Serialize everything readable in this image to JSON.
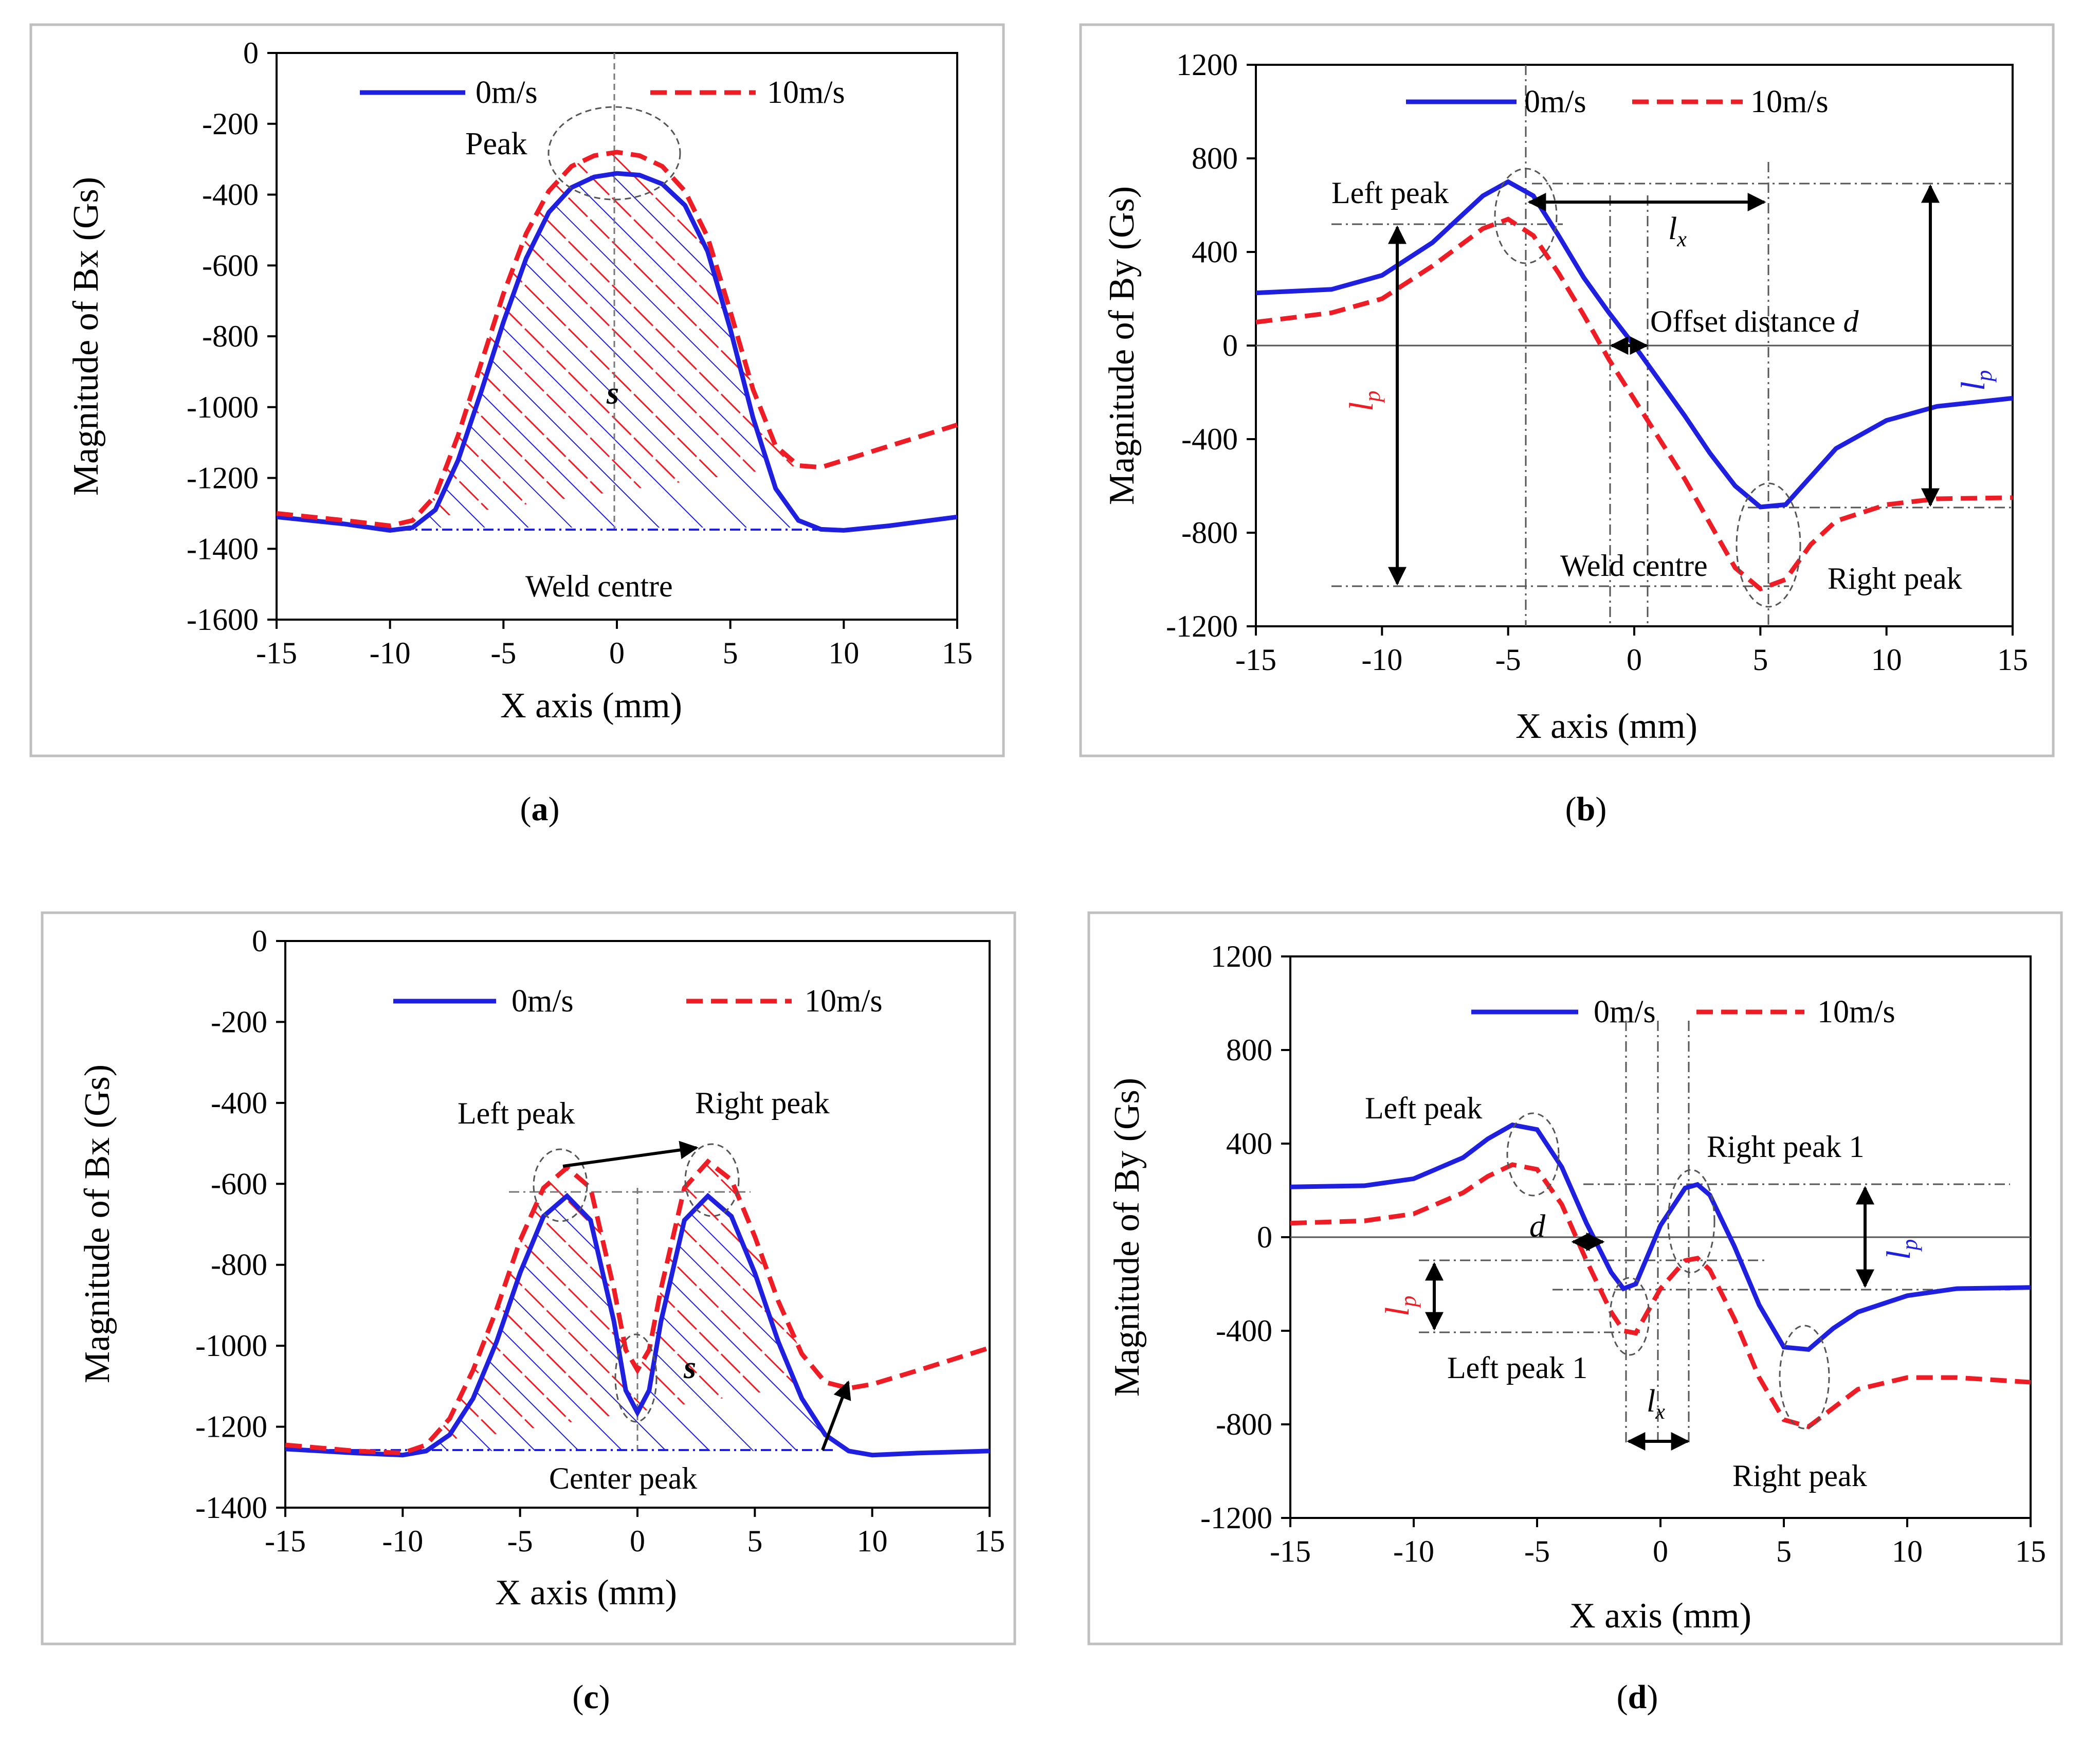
{
  "colors": {
    "series_0ms": "#1f1fe0",
    "series_10ms": "#ee1c24",
    "axis": "#000000",
    "grid_ref": "#555555",
    "panel_border": "#bfbfbf"
  },
  "chart_data": [
    {
      "id": "a",
      "type": "line",
      "panel_label": "a",
      "xlabel": "X axis (mm)",
      "ylabel": "Magnitude of Bx (Gs)",
      "xlim": [
        -15,
        15
      ],
      "ylim": [
        -1600,
        0
      ],
      "xticks": [
        -15,
        -10,
        -5,
        0,
        5,
        10,
        15
      ],
      "yticks": [
        0,
        -200,
        -400,
        -600,
        -800,
        -1000,
        -1200,
        -1400,
        -1600
      ],
      "legend": "top",
      "series": [
        {
          "name": "0m/s",
          "style": "solid",
          "x": [
            -15,
            -12,
            -10,
            -9,
            -8,
            -7,
            -6,
            -5,
            -4,
            -3,
            -2,
            -1,
            0,
            1,
            2,
            3,
            4,
            5,
            6,
            7,
            8,
            9,
            10,
            12,
            15
          ],
          "y": [
            -1310,
            -1330,
            -1348,
            -1340,
            -1290,
            -1150,
            -960,
            -760,
            -580,
            -450,
            -380,
            -350,
            -340,
            -345,
            -370,
            -430,
            -560,
            -780,
            -1030,
            -1230,
            -1320,
            -1345,
            -1348,
            -1335,
            -1310
          ]
        },
        {
          "name": "10m/s",
          "style": "dashed",
          "x": [
            -15,
            -12,
            -10,
            -9,
            -8,
            -7,
            -6,
            -5,
            -4,
            -3,
            -2,
            -1,
            0,
            1,
            2,
            3,
            4,
            5,
            6,
            7,
            8,
            9,
            10,
            12,
            15
          ],
          "y": [
            -1300,
            -1320,
            -1335,
            -1320,
            -1250,
            -1080,
            -880,
            -680,
            -510,
            -390,
            -320,
            -290,
            -280,
            -290,
            -320,
            -390,
            -520,
            -730,
            -950,
            -1110,
            -1165,
            -1170,
            -1150,
            -1110,
            -1050
          ]
        }
      ],
      "annotations": {
        "peak": "Peak",
        "area": "s",
        "weld": "Weld centre"
      }
    },
    {
      "id": "b",
      "type": "line",
      "panel_label": "b",
      "xlabel": "X axis (mm)",
      "ylabel": "Magnitude of By (Gs)",
      "xlim": [
        -15,
        15
      ],
      "ylim": [
        -1200,
        1200
      ],
      "xticks": [
        -15,
        -10,
        -5,
        0,
        5,
        10,
        15
      ],
      "yticks": [
        1200,
        800,
        400,
        0,
        -400,
        -800,
        -1200
      ],
      "legend": "top",
      "series": [
        {
          "name": "0m/s",
          "style": "solid",
          "x": [
            -15,
            -12,
            -10,
            -8,
            -7,
            -6,
            -5,
            -4,
            -3,
            -2,
            -1,
            0,
            1,
            2,
            3,
            4,
            5,
            6,
            7,
            8,
            10,
            12,
            15
          ],
          "y": [
            225,
            240,
            300,
            440,
            540,
            640,
            700,
            640,
            470,
            290,
            140,
            0,
            -150,
            -300,
            -460,
            -600,
            -690,
            -680,
            -560,
            -440,
            -320,
            -260,
            -225
          ]
        },
        {
          "name": "10m/s",
          "style": "dashed",
          "x": [
            -15,
            -12,
            -10,
            -8,
            -7,
            -6,
            -5,
            -4,
            -3,
            -2,
            -1,
            0,
            1,
            2,
            3,
            4,
            5,
            6,
            7,
            8,
            10,
            12,
            15
          ],
          "y": [
            100,
            140,
            200,
            340,
            420,
            500,
            540,
            470,
            310,
            130,
            -60,
            -230,
            -400,
            -570,
            -760,
            -950,
            -1040,
            -1000,
            -850,
            -750,
            -680,
            -655,
            -650
          ]
        }
      ],
      "annotations": {
        "left_peak": "Left peak",
        "right_peak": "Right peak",
        "lx": "l",
        "lx_sub": "x",
        "offset": "Offset distance ",
        "offset_var": "d",
        "weld": "Weld centre",
        "lp_red": "l",
        "lp_red_sub": "p",
        "lp_blue": "l",
        "lp_blue_sub": "p"
      }
    },
    {
      "id": "c",
      "type": "line",
      "panel_label": "c",
      "xlabel": "X axis (mm)",
      "ylabel": "Magnitude of Bx (Gs)",
      "xlim": [
        -15,
        15
      ],
      "ylim": [
        -1400,
        0
      ],
      "xticks": [
        -15,
        -10,
        -5,
        0,
        5,
        10,
        15
      ],
      "yticks": [
        0,
        -200,
        -400,
        -600,
        -800,
        -1000,
        -1200,
        -1400
      ],
      "legend": "top",
      "series": [
        {
          "name": "0m/s",
          "style": "solid",
          "x": [
            -15,
            -12,
            -10,
            -9,
            -8,
            -7,
            -6,
            -5,
            -4,
            -3,
            -2,
            -1,
            -0.5,
            0,
            0.5,
            1,
            2,
            3,
            4,
            5,
            6,
            7,
            8,
            9,
            10,
            12,
            15
          ],
          "y": [
            -1255,
            -1265,
            -1270,
            -1260,
            -1220,
            -1130,
            -990,
            -820,
            -680,
            -630,
            -690,
            -940,
            -1110,
            -1165,
            -1110,
            -940,
            -690,
            -630,
            -680,
            -820,
            -990,
            -1130,
            -1220,
            -1260,
            -1270,
            -1265,
            -1260
          ]
        },
        {
          "name": "10m/s",
          "style": "dashed",
          "x": [
            -15,
            -12,
            -10,
            -9,
            -8,
            -7,
            -6,
            -5,
            -4,
            -3,
            -2,
            -1,
            -0.5,
            0,
            0.5,
            1,
            2,
            3,
            4,
            5,
            6,
            7,
            8,
            9,
            10,
            12,
            15
          ],
          "y": [
            -1245,
            -1260,
            -1265,
            -1245,
            -1180,
            -1060,
            -910,
            -740,
            -610,
            -560,
            -610,
            -860,
            -1010,
            -1060,
            -1010,
            -860,
            -610,
            -545,
            -590,
            -730,
            -890,
            -1020,
            -1090,
            -1105,
            -1095,
            -1060,
            -1005
          ]
        }
      ],
      "annotations": {
        "left_peak": "Left peak",
        "right_peak": "Right peak",
        "center_peak": "Center peak",
        "area": "s"
      }
    },
    {
      "id": "d",
      "type": "line",
      "panel_label": "d",
      "xlabel": "X axis (mm)",
      "ylabel": "Magnitude of By (Gs)",
      "xlim": [
        -15,
        15
      ],
      "ylim": [
        -1200,
        1200
      ],
      "xticks": [
        -15,
        -10,
        -5,
        0,
        5,
        10,
        15
      ],
      "yticks": [
        1200,
        800,
        400,
        0,
        -400,
        -800,
        -1200
      ],
      "legend": "top",
      "series": [
        {
          "name": "0m/s",
          "style": "solid",
          "x": [
            -15,
            -12,
            -10,
            -8,
            -7,
            -6,
            -5,
            -4,
            -3,
            -2,
            -1.5,
            -1,
            0,
            1,
            1.5,
            2,
            3,
            4,
            5,
            6,
            7,
            8,
            10,
            12,
            15
          ],
          "y": [
            215,
            220,
            250,
            340,
            420,
            480,
            460,
            300,
            60,
            -150,
            -220,
            -200,
            50,
            210,
            225,
            180,
            -40,
            -290,
            -470,
            -480,
            -390,
            -320,
            -250,
            -220,
            -215
          ]
        },
        {
          "name": "10m/s",
          "style": "dashed",
          "x": [
            -15,
            -12,
            -10,
            -8,
            -7,
            -6,
            -5,
            -4,
            -3,
            -2,
            -1.5,
            -1,
            0,
            1,
            1.5,
            2,
            3,
            4,
            5,
            6,
            7,
            8,
            10,
            12,
            15
          ],
          "y": [
            60,
            70,
            100,
            190,
            260,
            310,
            290,
            140,
            -100,
            -320,
            -400,
            -410,
            -220,
            -100,
            -90,
            -140,
            -350,
            -600,
            -780,
            -810,
            -730,
            -650,
            -600,
            -600,
            -620
          ]
        }
      ],
      "annotations": {
        "left_peak": "Left peak",
        "right_peak_1": "Right peak 1",
        "left_peak_1": "Left peak 1",
        "right_peak": "Right peak",
        "d": "d",
        "lx": "l",
        "lx_sub": "x",
        "lp_red": "l",
        "lp_red_sub": "p",
        "lp_blue": "l",
        "lp_blue_sub": "p"
      }
    }
  ]
}
